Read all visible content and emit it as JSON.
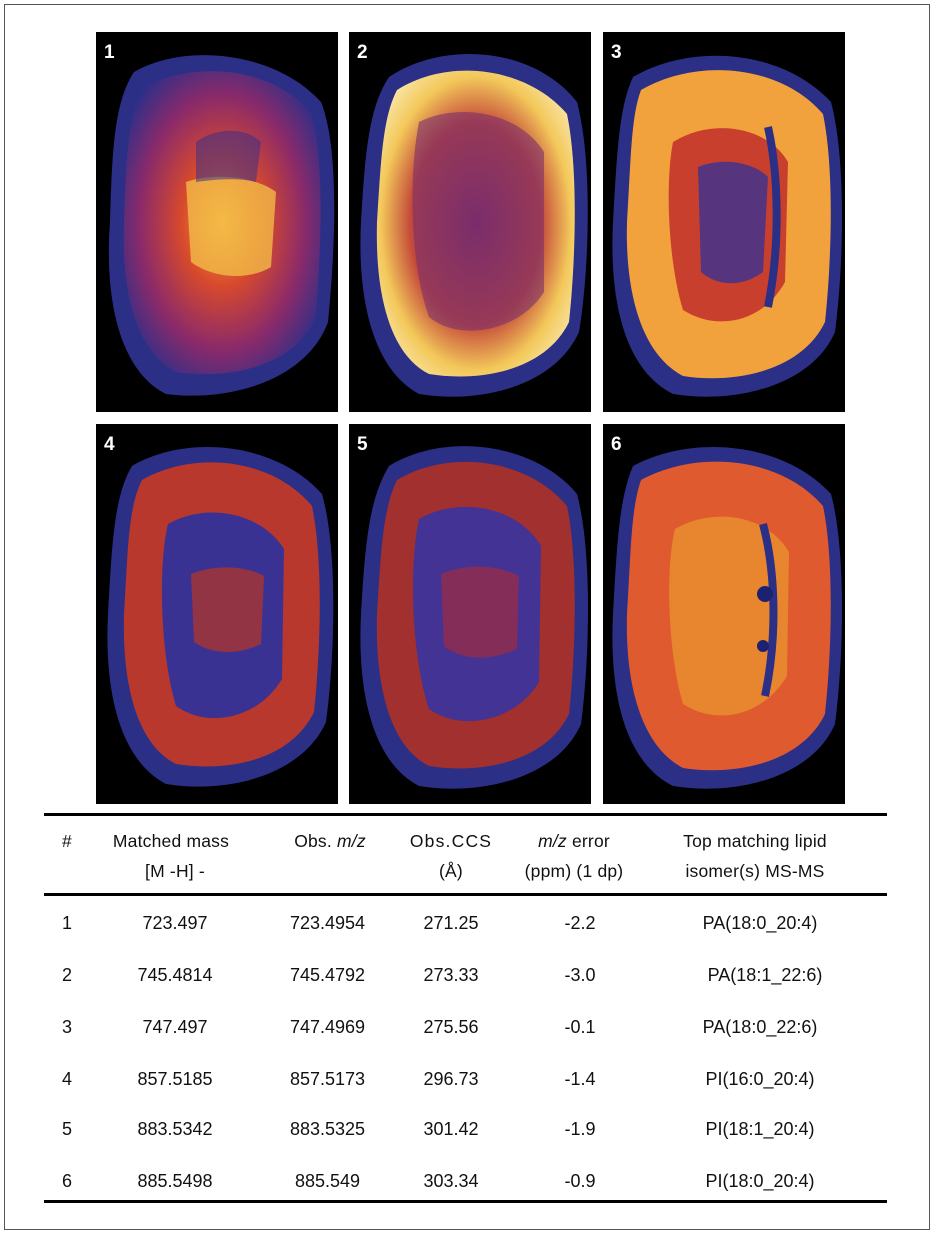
{
  "panels": [
    {
      "label": "1",
      "colors": {
        "low": "#2a2f8a",
        "high": "#f3a83a"
      }
    },
    {
      "label": "2",
      "colors": {
        "low": "#2a2f8a",
        "high": "#fbe7a8"
      }
    },
    {
      "label": "3",
      "colors": {
        "low": "#2a2f8a",
        "high": "#f7b040"
      }
    },
    {
      "label": "4",
      "colors": {
        "low": "#2a2f8a",
        "high": "#d8432a"
      }
    },
    {
      "label": "5",
      "colors": {
        "low": "#2a2f8a",
        "high": "#d8432a"
      }
    },
    {
      "label": "6",
      "colors": {
        "low": "#2a2f8a",
        "high": "#f3a03a"
      }
    }
  ],
  "table": {
    "headers": {
      "num": "#",
      "matched_mass_line1": "Matched mass",
      "matched_mass_line2": "[M -H] -",
      "obs_mz_prefix": "Obs. ",
      "obs_mz_italic": "m/z",
      "obs_ccs_line1": "Obs.CCS",
      "obs_ccs_line2": "(Å)",
      "mz_error_italic": "m/z",
      "mz_error_line1_suffix": " error",
      "mz_error_line2": "(ppm) (1 dp)",
      "top_match_line1": "Top matching lipid",
      "top_match_line2": "isomer(s) MS-MS"
    },
    "rows": [
      {
        "num": "1",
        "matched_mass": "723.497",
        "obs_mz": "723.4954",
        "obs_ccs": "271.25",
        "mz_error": "-2.2",
        "lipid": "PA(18:0_20:4)"
      },
      {
        "num": "2",
        "matched_mass": "745.4814",
        "obs_mz": "745.4792",
        "obs_ccs": "273.33",
        "mz_error": "-3.0",
        "lipid": "PA(18:1_22:6)"
      },
      {
        "num": "3",
        "matched_mass": "747.497",
        "obs_mz": "747.4969",
        "obs_ccs": "275.56",
        "mz_error": "-0.1",
        "lipid": "PA(18:0_22:6)"
      },
      {
        "num": "4",
        "matched_mass": "857.5185",
        "obs_mz": "857.5173",
        "obs_ccs": "296.73",
        "mz_error": "-1.4",
        "lipid": "PI(16:0_20:4)"
      },
      {
        "num": "5",
        "matched_mass": "883.5342",
        "obs_mz": "883.5325",
        "obs_ccs": "301.42",
        "mz_error": "-1.9",
        "lipid": "PI(18:1_20:4)"
      },
      {
        "num": "6",
        "matched_mass": "885.5498",
        "obs_mz": "885.549",
        "obs_ccs": "303.34",
        "mz_error": "-0.9",
        "lipid": "PI(18:0_20:4)"
      }
    ]
  }
}
